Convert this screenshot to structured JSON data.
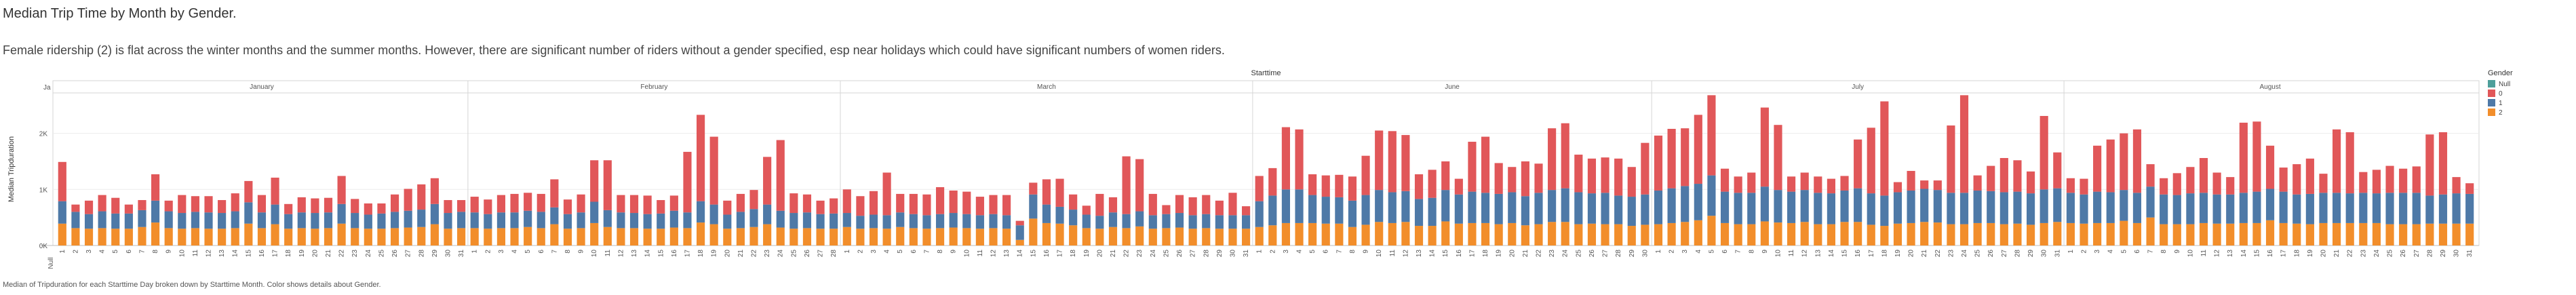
{
  "title": "Median Trip Time by Month by Gender.",
  "subtitle": "Female ridership  (2) is flat across the winter months and the summer months. However, there are significant number of riders without a gender specified, esp  near holidays which could have significant numbers of women riders.",
  "caption": "Median of Tripduration for each Starttime Day broken down by Starttime Month.  Color shows details about Gender.",
  "colors": {
    "Null": "#4e9f9b",
    "0": "#e15759",
    "1": "#4e79a7",
    "2": "#f28e2b"
  },
  "chart_data": {
    "type": "bar",
    "stacked": true,
    "column_header": "Starttime",
    "ylabel": "Median Tripduration",
    "yticks": [
      "0K",
      "1K",
      "2K"
    ],
    "ylim": [
      0,
      2600
    ],
    "legend": {
      "title": "Gender",
      "entries": [
        "Null",
        "0",
        "1",
        "2"
      ],
      "placement": "right"
    },
    "corner_labels": {
      "top": "Ja",
      "bottom": "Null"
    },
    "months": [
      {
        "name": "January",
        "days": 31,
        "v2": [
          390,
          310,
          300,
          310,
          300,
          300,
          330,
          410,
          310,
          300,
          310,
          300,
          300,
          310,
          390,
          310,
          380,
          300,
          310,
          300,
          310,
          390,
          310,
          300,
          300,
          310,
          320,
          330,
          380,
          300,
          310
        ],
        "v1": [
          400,
          290,
          260,
          300,
          270,
          270,
          300,
          390,
          300,
          280,
          290,
          290,
          280,
          300,
          380,
          280,
          350,
          260,
          280,
          280,
          280,
          350,
          270,
          250,
          270,
          290,
          300,
          310,
          360,
          280,
          290
        ],
        "v0": [
          700,
          130,
          240,
          290,
          280,
          160,
          180,
          470,
          190,
          320,
          280,
          290,
          230,
          320,
          380,
          310,
          480,
          180,
          270,
          260,
          260,
          500,
          250,
          200,
          180,
          310,
          390,
          450,
          460,
          230,
          210
        ]
      },
      {
        "name": "February",
        "days": 28,
        "v2": [
          310,
          300,
          310,
          310,
          330,
          310,
          380,
          300,
          310,
          400,
          330,
          310,
          310,
          300,
          300,
          320,
          310,
          410,
          380,
          300,
          310,
          330,
          380,
          320,
          300,
          310,
          300,
          300
        ],
        "v1": [
          280,
          260,
          280,
          280,
          290,
          290,
          300,
          260,
          280,
          380,
          300,
          280,
          270,
          260,
          270,
          300,
          280,
          380,
          350,
          250,
          290,
          320,
          350,
          300,
          280,
          280,
          260,
          270
        ],
        "v0": [
          280,
          260,
          310,
          330,
          320,
          320,
          500,
          260,
          320,
          740,
          890,
          310,
          320,
          330,
          240,
          270,
          1080,
          1540,
          1210,
          250,
          320,
          340,
          850,
          1260,
          350,
          320,
          240,
          270
        ]
      },
      {
        "name": "March",
        "days": 31,
        "v2": [
          330,
          300,
          310,
          300,
          330,
          310,
          300,
          310,
          320,
          310,
          300,
          310,
          300,
          100,
          480,
          400,
          390,
          360,
          310,
          300,
          330,
          310,
          340,
          300,
          310,
          320,
          300,
          310,
          300,
          300,
          300
        ],
        "v1": [
          250,
          230,
          240,
          240,
          260,
          250,
          240,
          250,
          260,
          250,
          240,
          250,
          240,
          260,
          430,
          330,
          300,
          280,
          240,
          230,
          260,
          250,
          270,
          240,
          250,
          260,
          240,
          250,
          240,
          240,
          240
        ],
        "v0": [
          420,
          350,
          420,
          760,
          330,
          360,
          370,
          480,
          400,
          400,
          330,
          340,
          360,
          80,
          210,
          450,
          500,
          270,
          160,
          390,
          270,
          1030,
          930,
          380,
          160,
          320,
          320,
          340,
          260,
          400,
          160
        ]
      },
      {
        "name": "June",
        "days": 30,
        "v2": [
          330,
          360,
          400,
          400,
          400,
          390,
          390,
          330,
          370,
          420,
          400,
          420,
          350,
          350,
          430,
          390,
          400,
          400,
          380,
          400,
          360,
          380,
          420,
          420,
          380,
          390,
          380,
          380,
          350,
          370
        ],
        "v1": [
          460,
          530,
          600,
          600,
          500,
          480,
          470,
          470,
          530,
          570,
          550,
          550,
          480,
          500,
          560,
          520,
          560,
          540,
          540,
          550,
          520,
          560,
          570,
          600,
          570,
          540,
          560,
          510,
          520,
          540
        ],
        "v0": [
          450,
          490,
          1110,
          1070,
          370,
          380,
          400,
          430,
          700,
          1060,
          1090,
          1000,
          440,
          500,
          510,
          280,
          890,
          1000,
          550,
          450,
          620,
          520,
          1100,
          1160,
          670,
          620,
          630,
          660,
          530,
          920
        ]
      },
      {
        "name": "July",
        "days": 31,
        "v2": [
          380,
          400,
          420,
          450,
          530,
          400,
          380,
          380,
          430,
          410,
          400,
          420,
          380,
          380,
          420,
          420,
          370,
          350,
          390,
          400,
          420,
          410,
          380,
          380,
          400,
          400,
          380,
          390,
          370,
          400,
          420
        ],
        "v1": [
          600,
          620,
          640,
          650,
          720,
          560,
          560,
          560,
          620,
          580,
          560,
          570,
          560,
          550,
          560,
          600,
          560,
          540,
          560,
          580,
          590,
          580,
          560,
          560,
          580,
          570,
          570,
          570,
          560,
          600,
          600
        ],
        "v0": [
          980,
          1060,
          1030,
          1230,
          1430,
          410,
          290,
          360,
          1410,
          1160,
          270,
          310,
          290,
          260,
          260,
          870,
          1170,
          1680,
          180,
          350,
          150,
          170,
          1200,
          1740,
          270,
          450,
          610,
          560,
          390,
          1310,
          640
        ]
      },
      {
        "name": "August",
        "days": 31,
        "v2": [
          400,
          390,
          400,
          400,
          440,
          400,
          500,
          380,
          380,
          380,
          400,
          390,
          390,
          400,
          400,
          450,
          400,
          390,
          380,
          400,
          400,
          400,
          400,
          400,
          380,
          380,
          380,
          390,
          390,
          390,
          390
        ],
        "v1": [
          540,
          520,
          560,
          550,
          550,
          540,
          550,
          530,
          520,
          550,
          540,
          520,
          520,
          540,
          560,
          560,
          560,
          520,
          540,
          540,
          540,
          530,
          540,
          530,
          560,
          560,
          560,
          500,
          520,
          540,
          530
        ],
        "v0": [
          260,
          280,
          820,
          940,
          1010,
          1130,
          400,
          290,
          390,
          470,
          620,
          390,
          310,
          1250,
          1250,
          770,
          430,
          540,
          630,
          340,
          1130,
          1090,
          370,
          420,
          480,
          430,
          470,
          1090,
          1110,
          290,
          190
        ]
      }
    ]
  }
}
